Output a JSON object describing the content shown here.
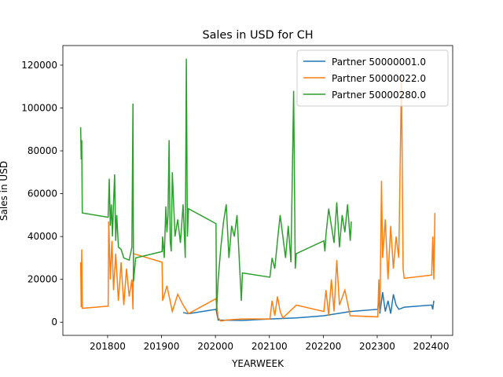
{
  "chart_data": {
    "type": "line",
    "title": "Sales in USD for CH",
    "x_label": "YEARWEEK",
    "y_label": "Sales in USD",
    "xlim": [
      201717,
      202440
    ],
    "ylim": [
      -6150,
      129150
    ],
    "xticks": [
      201800,
      201900,
      202000,
      202100,
      202200,
      202300,
      202400
    ],
    "yticks": [
      0,
      20000,
      40000,
      60000,
      80000,
      100000,
      120000
    ],
    "legend": "upper right",
    "series": [
      {
        "name": "Partner 50000001.0",
        "color": "#1f77b4",
        "x": [
          201940,
          201950,
          202001,
          202005,
          202050,
          202101,
          202150,
          202201,
          202250,
          202301,
          202303,
          202305,
          202310,
          202315,
          202320,
          202325,
          202330,
          202335,
          202340,
          202350,
          202401,
          202403,
          202405
        ],
        "values": [
          4500,
          4000,
          6000,
          1000,
          800,
          1500,
          2000,
          3000,
          5000,
          6000,
          11000,
          4000,
          14000,
          5000,
          10000,
          4000,
          13000,
          8000,
          6000,
          7000,
          8000,
          6000,
          10000
        ]
      },
      {
        "name": "Partner 50000022.0",
        "color": "#ff7f0e",
        "x": [
          201750,
          201751,
          201752,
          201753,
          201801,
          201802,
          201805,
          201808,
          201811,
          201815,
          201820,
          201825,
          201830,
          201835,
          201840,
          201845,
          201847,
          201848,
          201901,
          201902,
          201910,
          201920,
          201930,
          201940,
          201950,
          202001,
          202005,
          202010,
          202020,
          202030,
          202050,
          202101,
          202105,
          202110,
          202115,
          202120,
          202125,
          202150,
          202201,
          202205,
          202210,
          202215,
          202220,
          202225,
          202230,
          202240,
          202250,
          202301,
          202303,
          202305,
          202308,
          202310,
          202315,
          202320,
          202325,
          202330,
          202335,
          202340,
          202345,
          202348,
          202350,
          202401,
          202403,
          202405,
          202407
        ],
        "values": [
          28000,
          7000,
          34000,
          6500,
          7500,
          47000,
          20000,
          38000,
          15000,
          32000,
          10000,
          28000,
          8000,
          25000,
          12000,
          20000,
          6000,
          32000,
          28000,
          10000,
          17000,
          5000,
          13000,
          8000,
          4000,
          11000,
          2000,
          500,
          1000,
          1200,
          1500,
          1500,
          10000,
          3000,
          12000,
          5000,
          2000,
          8000,
          5000,
          15000,
          3000,
          20000,
          5000,
          29000,
          8000,
          15000,
          3000,
          2500,
          20000,
          5000,
          66000,
          30000,
          48000,
          20000,
          45000,
          25000,
          40000,
          30000,
          115000,
          25000,
          20500,
          22000,
          40000,
          20000,
          51000
        ]
      },
      {
        "name": "Partner 50000280.0",
        "color": "#2ca02c",
        "x": [
          201750,
          201751,
          201752,
          201753,
          201801,
          201803,
          201805,
          201807,
          201809,
          201811,
          201813,
          201815,
          201817,
          201820,
          201825,
          201830,
          201840,
          201845,
          201847,
          201848,
          201852,
          201901,
          201902,
          201905,
          201908,
          201910,
          201912,
          201914,
          201916,
          201918,
          201920,
          201925,
          201930,
          201935,
          201940,
          201944,
          201946,
          201948,
          201950,
          202001,
          202002,
          202005,
          202010,
          202015,
          202020,
          202025,
          202030,
          202035,
          202040,
          202045,
          202048,
          202050,
          202101,
          202105,
          202110,
          202115,
          202120,
          202125,
          202130,
          202135,
          202140,
          202145,
          202148,
          202150,
          202201,
          202203,
          202205,
          202210,
          202215,
          202220,
          202225,
          202230,
          202235,
          202240,
          202245,
          202250,
          202252
        ],
        "values": [
          91000,
          76000,
          85000,
          51000,
          49000,
          67000,
          45000,
          55000,
          40000,
          56000,
          69000,
          38000,
          50000,
          35000,
          34000,
          30000,
          29000,
          35000,
          102000,
          19000,
          30000,
          33000,
          40000,
          30000,
          54000,
          42000,
          50000,
          85000,
          38000,
          33000,
          70000,
          40000,
          48000,
          37000,
          55000,
          30000,
          123000,
          40000,
          53000,
          46000,
          5000,
          20000,
          35000,
          47000,
          55000,
          30000,
          45000,
          40000,
          50000,
          25000,
          10000,
          23000,
          21000,
          30000,
          25000,
          38000,
          50000,
          40000,
          30000,
          45000,
          28000,
          108000,
          25000,
          32000,
          38000,
          33000,
          41000,
          53000,
          45000,
          37000,
          56000,
          35000,
          50000,
          42000,
          55000,
          38000,
          47000
        ]
      }
    ]
  }
}
